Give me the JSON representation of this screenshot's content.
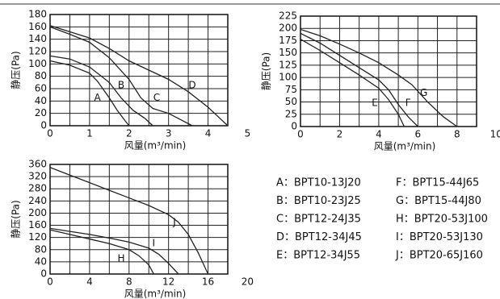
{
  "chart_data": [
    {
      "type": "line",
      "xlabel": "风量(m³/min)",
      "ylabel": "静压(Pa)",
      "xlim": [
        0,
        4.5
      ],
      "ylim": [
        0,
        180
      ],
      "xticks": [
        0,
        1,
        2,
        3,
        4,
        5
      ],
      "yticks": [
        0,
        20,
        40,
        60,
        80,
        100,
        120,
        140,
        160,
        180
      ],
      "grid": true,
      "series": [
        {
          "name": "A",
          "color": "#222222",
          "x": [
            0,
            0.5,
            1,
            1.2,
            1.5,
            1.7,
            1.9,
            2
          ],
          "values": [
            105,
            98,
            85,
            72,
            45,
            25,
            8,
            0
          ]
        },
        {
          "name": "B",
          "color": "#222222",
          "x": [
            0,
            0.5,
            1,
            1.5,
            1.8,
            2.1,
            2.4,
            2.6
          ],
          "values": [
            113,
            108,
            95,
            70,
            45,
            25,
            12,
            0
          ]
        },
        {
          "name": "C",
          "color": "#222222",
          "x": [
            0,
            0.5,
            1,
            1.5,
            2,
            2.3,
            2.6,
            3,
            3.3,
            3.6
          ],
          "values": [
            160,
            148,
            135,
            110,
            75,
            45,
            28,
            20,
            10,
            0
          ]
        },
        {
          "name": "D",
          "color": "#222222",
          "x": [
            0,
            1,
            1.5,
            2,
            2.5,
            3,
            3.5,
            4,
            4.3,
            4.5
          ],
          "values": [
            162,
            142,
            125,
            105,
            90,
            75,
            55,
            30,
            12,
            0
          ]
        }
      ]
    },
    {
      "type": "line",
      "xlabel": "风量(m³/min)",
      "ylabel": "静压(Pa)",
      "xlim": [
        0,
        9
      ],
      "ylim": [
        0,
        225
      ],
      "xticks": [
        0,
        2,
        4,
        6,
        8,
        10
      ],
      "yticks": [
        0,
        25,
        50,
        75,
        100,
        125,
        150,
        175,
        200,
        225
      ],
      "grid": true,
      "series": [
        {
          "name": "E",
          "color": "#222222",
          "x": [
            0,
            1,
            2,
            3,
            4,
            4.5,
            5,
            5.3
          ],
          "values": [
            178,
            155,
            130,
            105,
            78,
            55,
            25,
            0
          ]
        },
        {
          "name": "F",
          "color": "#222222",
          "x": [
            0,
            1,
            2,
            3,
            4,
            4.5,
            5,
            5.5,
            6
          ],
          "values": [
            190,
            170,
            145,
            120,
            95,
            75,
            45,
            20,
            0
          ]
        },
        {
          "name": "G",
          "color": "#222222",
          "x": [
            0,
            1,
            2,
            3,
            4,
            5,
            5.7,
            6.5,
            7.3,
            8
          ],
          "values": [
            198,
            185,
            168,
            150,
            130,
            105,
            85,
            50,
            20,
            0
          ]
        }
      ]
    },
    {
      "type": "line",
      "xlabel": "风量(m³/min)",
      "ylabel": "静压(Pa)",
      "xlim": [
        0,
        18
      ],
      "ylim": [
        0,
        360
      ],
      "xticks": [
        0,
        4,
        8,
        12,
        16,
        20
      ],
      "yticks": [
        0,
        40,
        80,
        120,
        160,
        200,
        240,
        280,
        320,
        360
      ],
      "grid": true,
      "series": [
        {
          "name": "H",
          "color": "#222222",
          "x": [
            0,
            2,
            4,
            6,
            8,
            9,
            10,
            10.5
          ],
          "values": [
            145,
            130,
            115,
            100,
            80,
            60,
            30,
            0
          ]
        },
        {
          "name": "I",
          "color": "#222222",
          "x": [
            0,
            2,
            4,
            6,
            8,
            10,
            11,
            12,
            13
          ],
          "values": [
            150,
            140,
            130,
            118,
            105,
            85,
            65,
            35,
            0
          ]
        },
        {
          "name": "J",
          "color": "#222222",
          "x": [
            0,
            2,
            4,
            6,
            8,
            10,
            12,
            13,
            14,
            15,
            15.5,
            16
          ],
          "values": [
            350,
            325,
            300,
            275,
            250,
            225,
            195,
            170,
            130,
            70,
            35,
            0
          ]
        }
      ]
    }
  ],
  "model_table": {
    "rows": [
      [
        "A：BPT10-13J20",
        "F：BPT15-44J65"
      ],
      [
        "B：BPT10-23J25",
        "G：BPT15-44J80"
      ],
      [
        "C：BPT12-24J35",
        "H：BPT20-53J100"
      ],
      [
        "D：BPT12-34J45",
        "I：BPT20-53J130"
      ],
      [
        "E：BPT12-34J55",
        "J：BPT20-65J160"
      ]
    ]
  }
}
